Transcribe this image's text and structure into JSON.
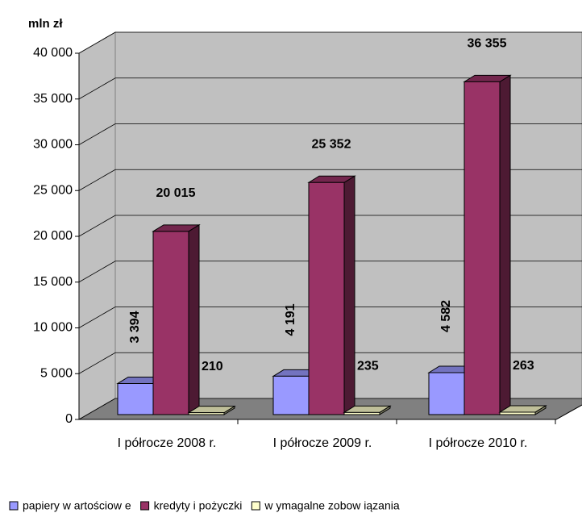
{
  "chart_data": {
    "type": "bar3d",
    "y_axis_title": "mln zł",
    "categories": [
      "I półrocze 2008 r.",
      "I półrocze 2009 r.",
      "I półrocze 2010 r."
    ],
    "series": [
      {
        "name": "papiery w artościow e",
        "color": "#9999ff",
        "values": [
          3394,
          4191,
          4582
        ],
        "value_labels": [
          "3 394",
          "4 191",
          "4 582"
        ]
      },
      {
        "name": "kredyty i pożyczki",
        "color": "#993366",
        "values": [
          20015,
          25352,
          36355
        ],
        "value_labels": [
          "20 015",
          "25 352",
          "36 355"
        ]
      },
      {
        "name": "w ymagalne zobow iązania",
        "color": "#ffffcc",
        "values": [
          210,
          235,
          263
        ],
        "value_labels": [
          "210",
          "235",
          "263"
        ]
      }
    ],
    "ylim": [
      0,
      40000
    ],
    "yticks": [
      0,
      {
        "value": 5000,
        "label": "5 000"
      },
      {
        "value": 10000,
        "label": "10 000"
      },
      {
        "value": 15000,
        "label": "15 000"
      },
      {
        "value": 20000,
        "label": "20 000"
      },
      {
        "value": 25000,
        "label": "25 000"
      },
      {
        "value": 30000,
        "label": "30 000"
      },
      {
        "value": 35000,
        "label": "35 000"
      },
      {
        "value": 40000,
        "label": "40 000"
      }
    ],
    "grid": true,
    "legend": "bottom"
  }
}
